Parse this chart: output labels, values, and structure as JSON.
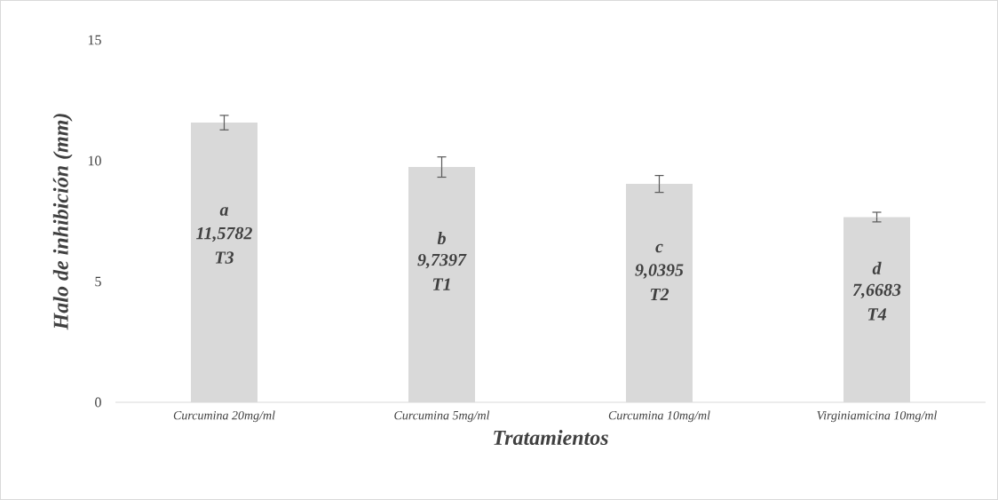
{
  "chart_data": {
    "type": "bar",
    "xlabel": "Tratamientos",
    "ylabel": "Halo de inhibición (mm)",
    "categories": [
      "Curcumina 20mg/ml",
      "Curcumina 5mg/ml",
      "Curcumina 10mg/ml",
      "Virginiamicina 10mg/ml"
    ],
    "values": [
      11.5782,
      9.7397,
      9.0395,
      7.6683
    ],
    "errors": [
      0.3,
      0.42,
      0.35,
      0.2
    ],
    "value_labels": [
      "11,5782",
      "9,7397",
      "9,0395",
      "7,6683"
    ],
    "color": "#d9d9d9",
    "ylim": [
      0,
      15
    ],
    "yticks": [
      0,
      5,
      10,
      15
    ],
    "grid": false,
    "annotations": [
      "a",
      "T3",
      "b",
      "T1",
      "c",
      "T2",
      "d",
      "T4"
    ]
  }
}
